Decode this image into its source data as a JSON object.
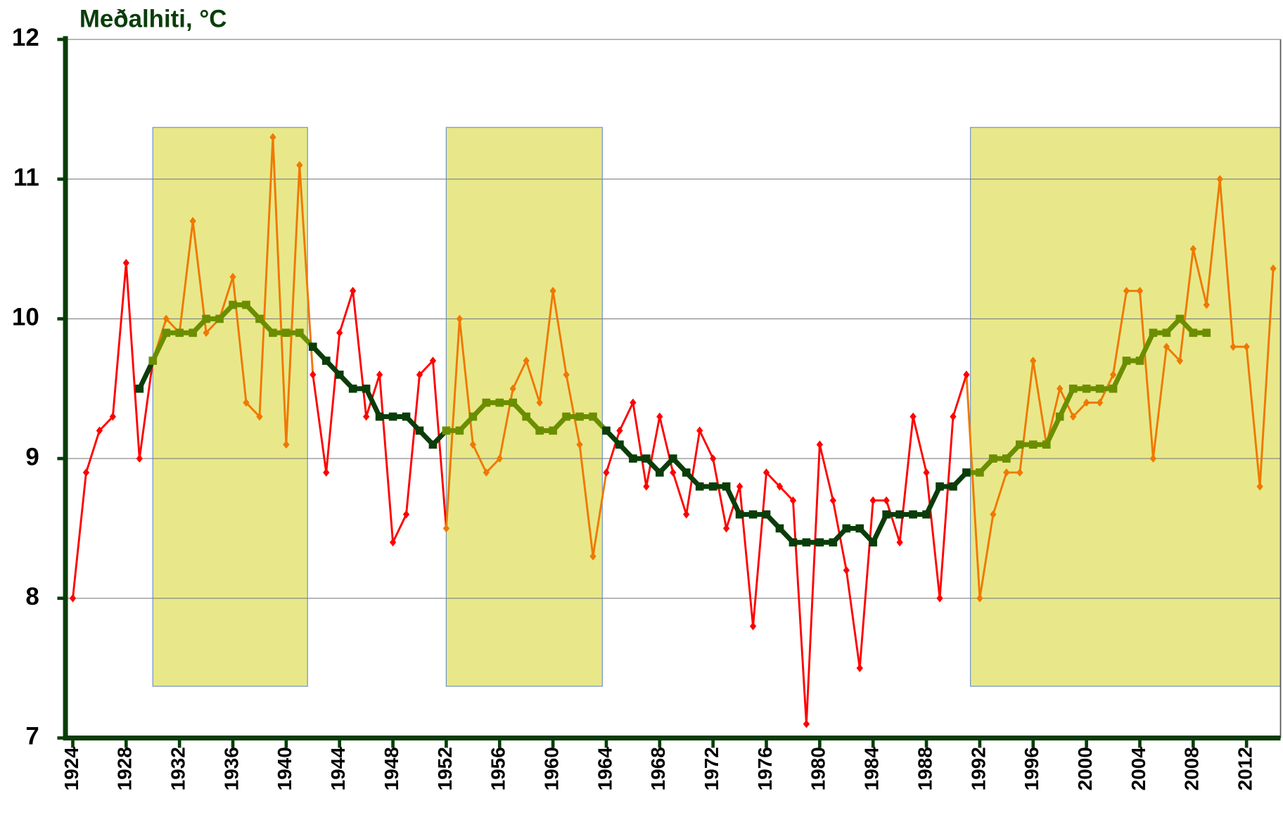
{
  "chart_data": {
    "type": "line",
    "title": "Meðalhiti, °C",
    "x": [
      1924,
      1925,
      1926,
      1927,
      1928,
      1929,
      1930,
      1931,
      1932,
      1933,
      1934,
      1935,
      1936,
      1937,
      1938,
      1939,
      1940,
      1941,
      1942,
      1943,
      1944,
      1945,
      1946,
      1947,
      1948,
      1949,
      1950,
      1951,
      1952,
      1953,
      1954,
      1955,
      1956,
      1957,
      1958,
      1959,
      1960,
      1961,
      1962,
      1963,
      1964,
      1965,
      1966,
      1967,
      1968,
      1969,
      1970,
      1971,
      1972,
      1973,
      1974,
      1975,
      1976,
      1977,
      1978,
      1979,
      1980,
      1981,
      1982,
      1983,
      1984,
      1985,
      1986,
      1987,
      1988,
      1989,
      1990,
      1991,
      1992,
      1993,
      1994,
      1995,
      1996,
      1997,
      1998,
      1999,
      2000,
      2001,
      2002,
      2003,
      2004,
      2005,
      2006,
      2007,
      2008,
      2009,
      2010,
      2011,
      2012,
      2013,
      2014
    ],
    "series": [
      {
        "color": "#ff0000",
        "highlight_color": "#f07800",
        "marker": "diamond",
        "values": [
          8.0,
          8.9,
          9.2,
          9.3,
          10.4,
          9.0,
          9.7,
          10.0,
          9.9,
          10.7,
          9.9,
          10.0,
          10.3,
          9.4,
          9.3,
          11.3,
          9.1,
          11.1,
          9.6,
          8.9,
          9.9,
          10.2,
          9.3,
          9.6,
          8.4,
          8.6,
          9.6,
          9.7,
          8.5,
          10.0,
          9.1,
          8.9,
          9.0,
          9.5,
          9.7,
          9.4,
          10.2,
          9.6,
          9.1,
          8.3,
          8.9,
          9.2,
          9.4,
          8.8,
          9.3,
          8.9,
          8.6,
          9.2,
          9.0,
          8.5,
          8.8,
          7.8,
          8.9,
          8.8,
          8.7,
          7.1,
          9.1,
          8.7,
          8.2,
          7.5,
          8.7,
          8.7,
          8.4,
          9.3,
          8.9,
          8.0,
          9.3,
          9.6,
          8.0,
          8.6,
          8.9,
          8.9,
          9.7,
          9.1,
          9.5,
          9.3,
          9.4,
          9.4,
          9.6,
          10.2,
          10.2,
          9.0,
          9.8,
          9.7,
          10.5,
          10.1,
          11.0,
          9.8,
          9.8,
          8.8,
          10.36
        ]
      },
      {
        "color": "#0a3d0a",
        "highlight_color": "#6b8e00",
        "marker": "square",
        "values": [
          null,
          null,
          null,
          null,
          null,
          9.5,
          9.7,
          9.9,
          9.9,
          9.9,
          10.0,
          10.0,
          10.1,
          10.1,
          10.0,
          9.9,
          9.9,
          9.9,
          9.8,
          9.7,
          9.6,
          9.5,
          9.5,
          9.3,
          9.3,
          9.3,
          9.2,
          9.1,
          9.2,
          9.2,
          9.3,
          9.4,
          9.4,
          9.4,
          9.3,
          9.2,
          9.2,
          9.3,
          9.3,
          9.3,
          9.2,
          9.1,
          9.0,
          9.0,
          8.9,
          9.0,
          8.9,
          8.8,
          8.8,
          8.8,
          8.6,
          8.6,
          8.6,
          8.5,
          8.4,
          8.4,
          8.4,
          8.4,
          8.5,
          8.5,
          8.4,
          8.6,
          8.6,
          8.6,
          8.6,
          8.8,
          8.8,
          8.9,
          8.9,
          9.0,
          9.0,
          9.1,
          9.1,
          9.1,
          9.3,
          9.5,
          9.5,
          9.5,
          9.5,
          9.7,
          9.7,
          9.9,
          9.9,
          10.0,
          9.9,
          9.9,
          null,
          null,
          null,
          null,
          null
        ]
      }
    ],
    "highlight_periods": [
      [
        1930,
        1941.6
      ],
      [
        1952,
        1963.7
      ],
      [
        1991.3,
        2014.55
      ]
    ],
    "highlight_ylim": [
      7.37,
      11.37
    ],
    "highlight_fill": "#e8e88a",
    "xlim": [
      1923.45,
      2014.55
    ],
    "xticks": [
      1924,
      1928,
      1932,
      1936,
      1940,
      1944,
      1948,
      1952,
      1956,
      1960,
      1964,
      1968,
      1972,
      1976,
      1980,
      1984,
      1988,
      1992,
      1996,
      2000,
      2004,
      2008,
      2012
    ],
    "ylim": [
      7,
      12
    ],
    "yticks": [
      7,
      8,
      9,
      10,
      11,
      12
    ],
    "grid": true,
    "axis_color": "#0a3d0a"
  }
}
